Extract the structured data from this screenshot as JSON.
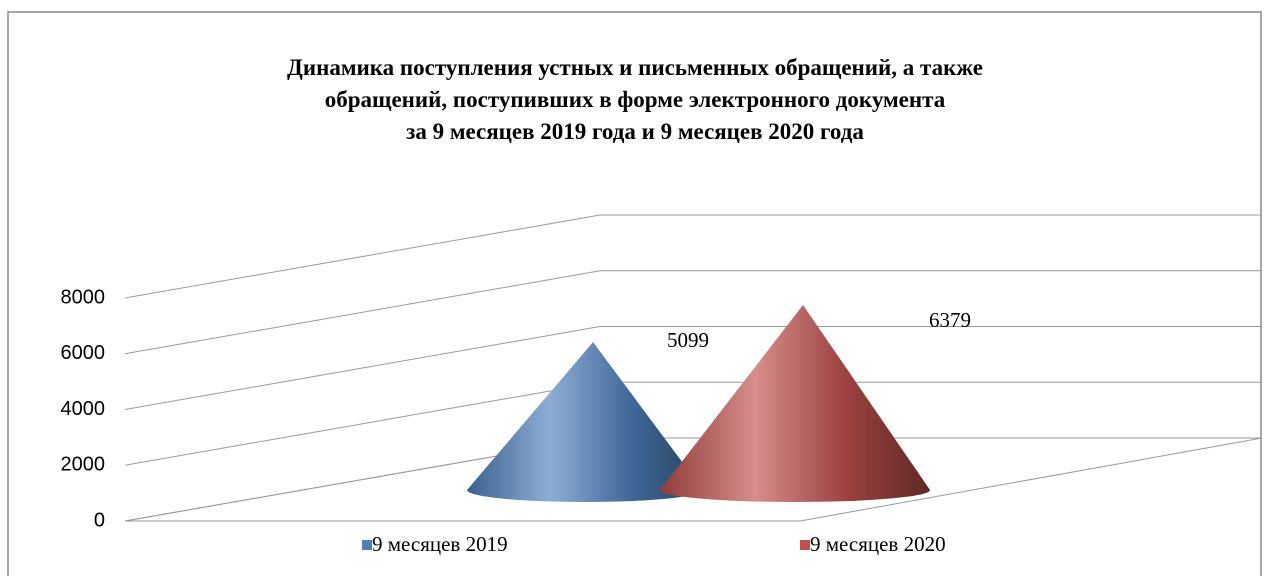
{
  "chart_data": {
    "type": "cone",
    "title": "Динамика поступления устных и письменных обращений, а также\nобращений, поступивших в форме электронного документа\nза 9 месяцев 2019 года и 9 месяцев 2020 года",
    "series": [
      {
        "name": "9 месяцев 2019",
        "color": "#4f81bd",
        "values": [
          5099
        ]
      },
      {
        "name": "9 месяцев 2020",
        "color": "#c0504d",
        "values": [
          6379
        ]
      }
    ],
    "ylim": [
      0,
      8000
    ],
    "yticks": [
      0,
      2000,
      4000,
      6000,
      8000
    ],
    "grid": true,
    "legend": "bottom"
  }
}
